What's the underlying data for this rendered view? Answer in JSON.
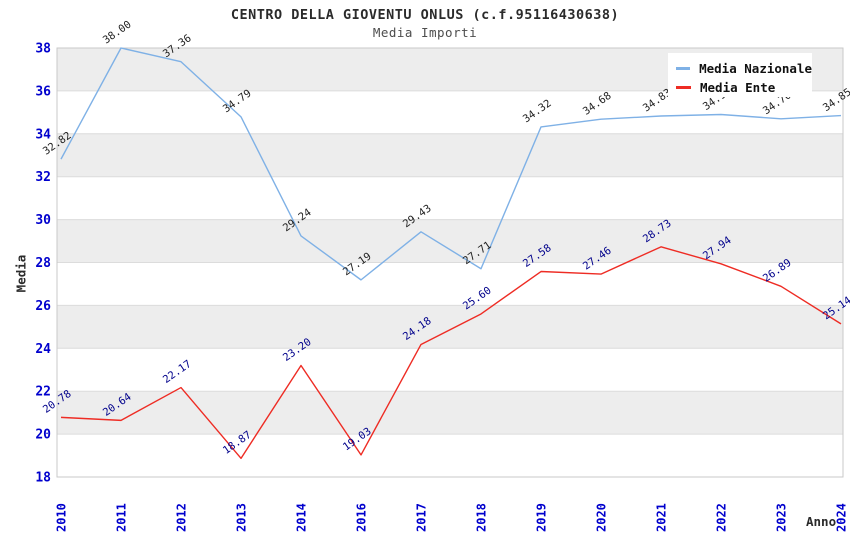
{
  "chart_data": {
    "type": "line",
    "title": "CENTRO DELLA GIOVENTU ONLUS (c.f.95116430638)",
    "subtitle": "Media Importi",
    "xlabel": "Anno",
    "ylabel": "Media",
    "ylim": [
      18,
      38
    ],
    "y_ticks": [
      18,
      20,
      22,
      24,
      26,
      28,
      30,
      32,
      34,
      36,
      38
    ],
    "categories": [
      "2010",
      "2011",
      "2012",
      "2013",
      "2014",
      "2016",
      "2017",
      "2018",
      "2019",
      "2020",
      "2021",
      "2022",
      "2023",
      "2024"
    ],
    "grid": "horizontal gridlines every 2 units with alternating gray/white bands",
    "legend": {
      "position": "top-right",
      "entries": [
        "Media Nazionale",
        "Media Ente"
      ]
    },
    "series": [
      {
        "name": "Media Nazionale",
        "color": "#7FB1E6",
        "label_color": "#1F1F1F",
        "values": [
          32.82,
          38.0,
          37.36,
          34.79,
          29.24,
          27.19,
          29.43,
          27.71,
          34.32,
          34.68,
          34.83,
          34.9,
          34.7,
          34.85
        ],
        "point_labels": [
          "32.82",
          "38.00",
          "37.36",
          "34.79",
          "29.24",
          "27.19",
          "29.43",
          "27.71",
          "34.32",
          "34.68",
          "34.83",
          "34.90",
          "34.70",
          "34.85"
        ]
      },
      {
        "name": "Media Ente",
        "color": "#EE2C24",
        "label_color": "#00008B",
        "values": [
          20.78,
          20.64,
          22.17,
          18.87,
          23.2,
          19.03,
          24.18,
          25.6,
          27.58,
          27.46,
          28.73,
          27.94,
          26.89,
          25.14
        ],
        "point_labels": [
          "20.78",
          "20.64",
          "22.17",
          "18.87",
          "23.20",
          "19.03",
          "24.18",
          "25.60",
          "27.58",
          "27.46",
          "28.73",
          "27.94",
          "26.89",
          "25.14"
        ]
      }
    ],
    "colors": {
      "tick_label": "#0000CD",
      "band_gray": "#EDEDED",
      "grid_line": "#DCDCDC",
      "plot_border": "#C9C9C9",
      "title_text": "#2b2b2b",
      "subtitle_text": "#4d4d4d"
    }
  }
}
